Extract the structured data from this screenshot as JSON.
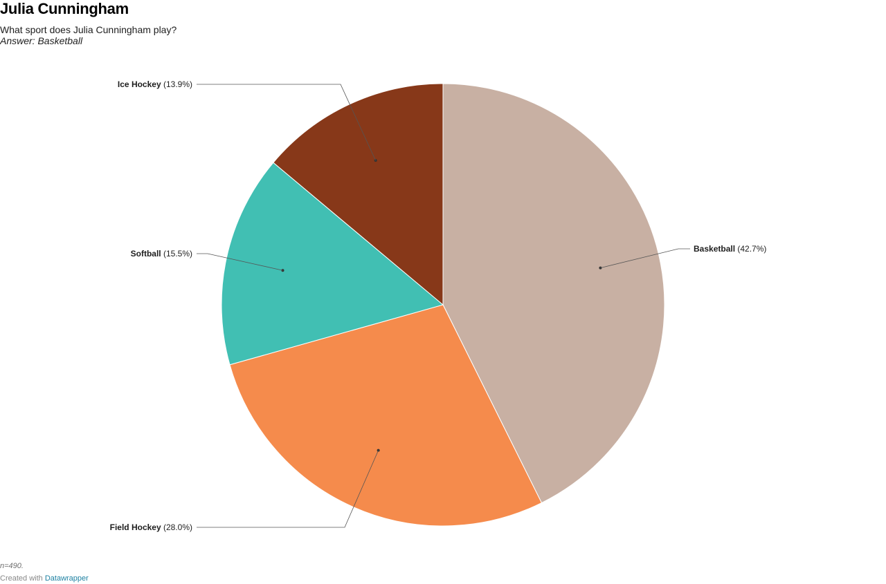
{
  "header": {
    "title": "Julia Cunningham",
    "subtitle": "What sport does Julia Cunningham play?",
    "answer": "Answer: Basketball"
  },
  "footer": {
    "note": "n=490.",
    "credit_prefix": "Created with",
    "credit_link": "Datawrapper"
  },
  "chart_data": {
    "type": "pie",
    "title": "",
    "categories": [
      "Basketball",
      "Field Hockey",
      "Softball",
      "Ice Hockey"
    ],
    "values": [
      42.7,
      28.0,
      15.5,
      13.9
    ],
    "value_labels": [
      "(42.7%)",
      "(28.0%)",
      "(15.5%)",
      "(13.9%)"
    ],
    "colors": [
      "#c8b0a3",
      "#f58b4c",
      "#41bfb3",
      "#873819"
    ],
    "start": "top, clockwise",
    "legend": "none (direct labels with leader lines)"
  }
}
